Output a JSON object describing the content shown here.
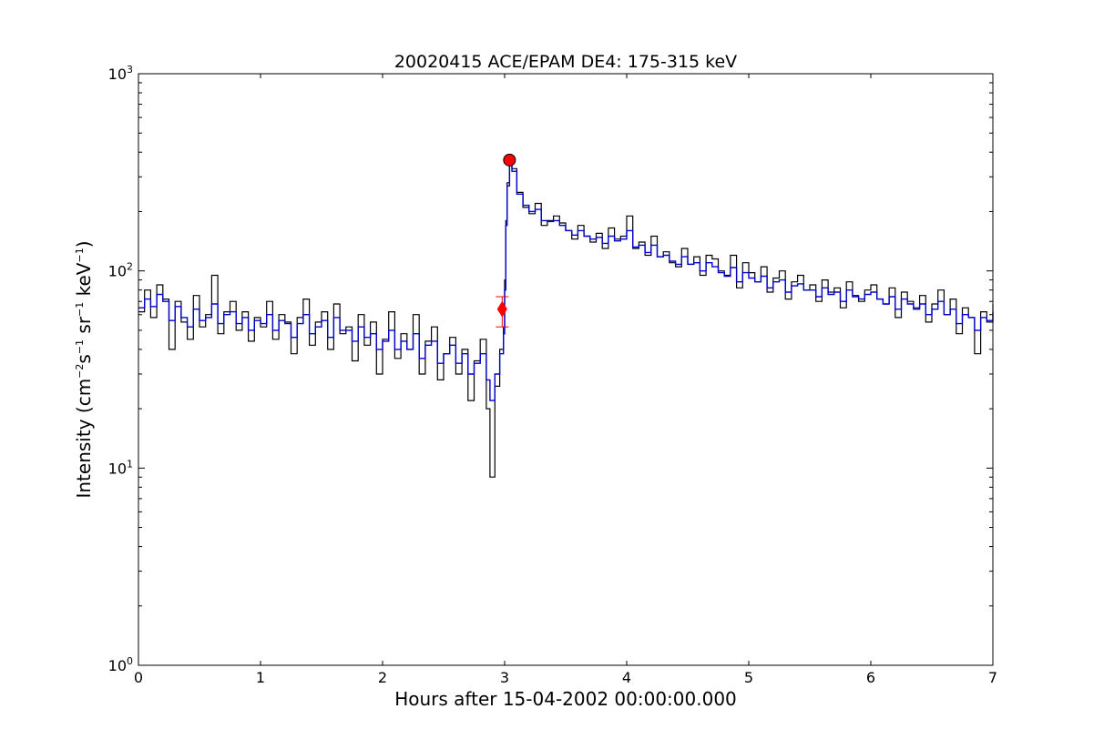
{
  "chart_data": {
    "type": "line",
    "title": "20020415 ACE/EPAM DE4: 175-315 keV",
    "xlabel": "Hours after 15-04-2002 00:00:00.000",
    "ylabel": {
      "prefix": "Intensity (cm",
      "exp1": "−2",
      "mid1": "s",
      "exp2": "−1",
      "mid2": " sr",
      "exp3": "−1",
      "mid3": " keV",
      "exp4": "−1",
      "suffix": ")"
    },
    "x_ticks": [
      "0",
      "1",
      "2",
      "3",
      "4",
      "5",
      "6",
      "7"
    ],
    "y_ticks": [
      {
        "base": "10",
        "exp": "0"
      },
      {
        "base": "10",
        "exp": "1"
      },
      {
        "base": "10",
        "exp": "2"
      },
      {
        "base": "10",
        "exp": "3"
      }
    ],
    "xlim": [
      0,
      7
    ],
    "ylim": [
      1,
      1000
    ],
    "yscale": "log",
    "grid": false,
    "series": [
      {
        "color": "#000000",
        "style": "steps",
        "x": [
          0.0,
          0.05,
          0.1,
          0.15,
          0.2,
          0.25,
          0.3,
          0.35,
          0.4,
          0.45,
          0.5,
          0.55,
          0.6,
          0.65,
          0.7,
          0.75,
          0.8,
          0.85,
          0.9,
          0.95,
          1.0,
          1.05,
          1.1,
          1.15,
          1.2,
          1.25,
          1.3,
          1.35,
          1.4,
          1.45,
          1.5,
          1.55,
          1.6,
          1.65,
          1.7,
          1.75,
          1.8,
          1.85,
          1.9,
          1.95,
          2.0,
          2.05,
          2.1,
          2.15,
          2.2,
          2.25,
          2.3,
          2.35,
          2.4,
          2.45,
          2.5,
          2.55,
          2.6,
          2.65,
          2.7,
          2.75,
          2.8,
          2.85,
          2.88,
          2.92,
          2.96,
          2.99,
          3.0,
          3.01,
          3.02,
          3.04,
          3.06,
          3.1,
          3.15,
          3.2,
          3.25,
          3.3,
          3.35,
          3.4,
          3.45,
          3.5,
          3.55,
          3.6,
          3.65,
          3.7,
          3.75,
          3.8,
          3.85,
          3.9,
          3.95,
          4.0,
          4.05,
          4.1,
          4.15,
          4.2,
          4.25,
          4.3,
          4.35,
          4.4,
          4.45,
          4.5,
          4.55,
          4.6,
          4.65,
          4.7,
          4.75,
          4.8,
          4.85,
          4.9,
          4.95,
          5.0,
          5.05,
          5.1,
          5.15,
          5.2,
          5.25,
          5.3,
          5.35,
          5.4,
          5.45,
          5.5,
          5.55,
          5.6,
          5.65,
          5.7,
          5.75,
          5.8,
          5.85,
          5.9,
          5.95,
          6.0,
          6.05,
          6.1,
          6.15,
          6.2,
          6.25,
          6.3,
          6.35,
          6.4,
          6.45,
          6.5,
          6.55,
          6.6,
          6.65,
          6.7,
          6.75,
          6.8,
          6.85,
          6.9,
          6.95,
          7.0
        ],
        "y": [
          62,
          80,
          58,
          85,
          72,
          40,
          70,
          55,
          45,
          75,
          52,
          60,
          95,
          48,
          62,
          70,
          50,
          62,
          44,
          58,
          52,
          70,
          45,
          60,
          55,
          38,
          58,
          72,
          42,
          55,
          62,
          40,
          68,
          48,
          52,
          35,
          60,
          42,
          55,
          30,
          45,
          62,
          36,
          48,
          40,
          60,
          30,
          44,
          52,
          28,
          38,
          46,
          30,
          40,
          22,
          35,
          45,
          20,
          9,
          26,
          40,
          52,
          90,
          180,
          280,
          350,
          330,
          250,
          210,
          195,
          220,
          170,
          180,
          190,
          175,
          160,
          145,
          170,
          150,
          140,
          155,
          130,
          165,
          145,
          150,
          190,
          130,
          140,
          120,
          150,
          118,
          125,
          110,
          105,
          130,
          108,
          118,
          95,
          120,
          115,
          100,
          95,
          120,
          82,
          110,
          98,
          88,
          105,
          78,
          92,
          100,
          72,
          88,
          95,
          80,
          85,
          70,
          90,
          78,
          82,
          65,
          88,
          75,
          70,
          80,
          85,
          72,
          68,
          82,
          58,
          78,
          70,
          65,
          75,
          55,
          68,
          80,
          60,
          72,
          48,
          65,
          58,
          38,
          62,
          55,
          68
        ]
      },
      {
        "color": "#0000cc",
        "style": "steps",
        "x": [
          0.0,
          0.05,
          0.1,
          0.15,
          0.2,
          0.25,
          0.3,
          0.35,
          0.4,
          0.45,
          0.5,
          0.55,
          0.6,
          0.65,
          0.7,
          0.75,
          0.8,
          0.85,
          0.9,
          0.95,
          1.0,
          1.05,
          1.1,
          1.15,
          1.2,
          1.25,
          1.3,
          1.35,
          1.4,
          1.45,
          1.5,
          1.55,
          1.6,
          1.65,
          1.7,
          1.75,
          1.8,
          1.85,
          1.9,
          1.95,
          2.0,
          2.05,
          2.1,
          2.15,
          2.2,
          2.25,
          2.3,
          2.35,
          2.4,
          2.45,
          2.5,
          2.55,
          2.6,
          2.65,
          2.7,
          2.75,
          2.8,
          2.85,
          2.88,
          2.92,
          2.96,
          2.99,
          3.0,
          3.01,
          3.02,
          3.04,
          3.06,
          3.1,
          3.15,
          3.2,
          3.25,
          3.3,
          3.35,
          3.4,
          3.45,
          3.5,
          3.55,
          3.6,
          3.65,
          3.7,
          3.75,
          3.8,
          3.85,
          3.9,
          3.95,
          4.0,
          4.05,
          4.1,
          4.15,
          4.2,
          4.25,
          4.3,
          4.35,
          4.4,
          4.45,
          4.5,
          4.55,
          4.6,
          4.65,
          4.7,
          4.75,
          4.8,
          4.85,
          4.9,
          4.95,
          5.0,
          5.05,
          5.1,
          5.15,
          5.2,
          5.25,
          5.3,
          5.35,
          5.4,
          5.45,
          5.5,
          5.55,
          5.6,
          5.65,
          5.7,
          5.75,
          5.8,
          5.85,
          5.9,
          5.95,
          6.0,
          6.05,
          6.1,
          6.15,
          6.2,
          6.25,
          6.3,
          6.35,
          6.4,
          6.45,
          6.5,
          6.55,
          6.6,
          6.65,
          6.7,
          6.75,
          6.8,
          6.85,
          6.9,
          6.95,
          7.0
        ],
        "y": [
          65,
          72,
          66,
          76,
          70,
          56,
          66,
          58,
          52,
          64,
          56,
          58,
          68,
          54,
          60,
          62,
          54,
          58,
          50,
          56,
          54,
          60,
          50,
          56,
          54,
          46,
          54,
          60,
          48,
          52,
          56,
          46,
          58,
          50,
          50,
          44,
          52,
          46,
          48,
          40,
          44,
          50,
          40,
          44,
          40,
          48,
          36,
          42,
          44,
          34,
          38,
          42,
          34,
          38,
          30,
          34,
          38,
          28,
          22,
          30,
          38,
          48,
          80,
          170,
          270,
          345,
          320,
          245,
          215,
          200,
          205,
          180,
          178,
          180,
          170,
          160,
          152,
          160,
          150,
          145,
          148,
          138,
          150,
          142,
          145,
          160,
          132,
          135,
          124,
          135,
          118,
          120,
          112,
          108,
          118,
          108,
          110,
          100,
          110,
          105,
          98,
          94,
          104,
          88,
          98,
          92,
          88,
          94,
          82,
          88,
          90,
          78,
          84,
          86,
          80,
          80,
          74,
          82,
          76,
          78,
          70,
          80,
          74,
          72,
          76,
          78,
          72,
          68,
          74,
          64,
          72,
          68,
          64,
          68,
          60,
          64,
          70,
          60,
          64,
          54,
          60,
          58,
          50,
          58,
          56,
          62
        ]
      }
    ],
    "markers": [
      {
        "type": "circle",
        "x": 3.04,
        "y": 365,
        "color": "#ff0000"
      },
      {
        "type": "diamond",
        "x": 2.98,
        "y": 64,
        "y_err_low": 52,
        "y_err_high": 74,
        "color": "#ff0000"
      }
    ]
  }
}
